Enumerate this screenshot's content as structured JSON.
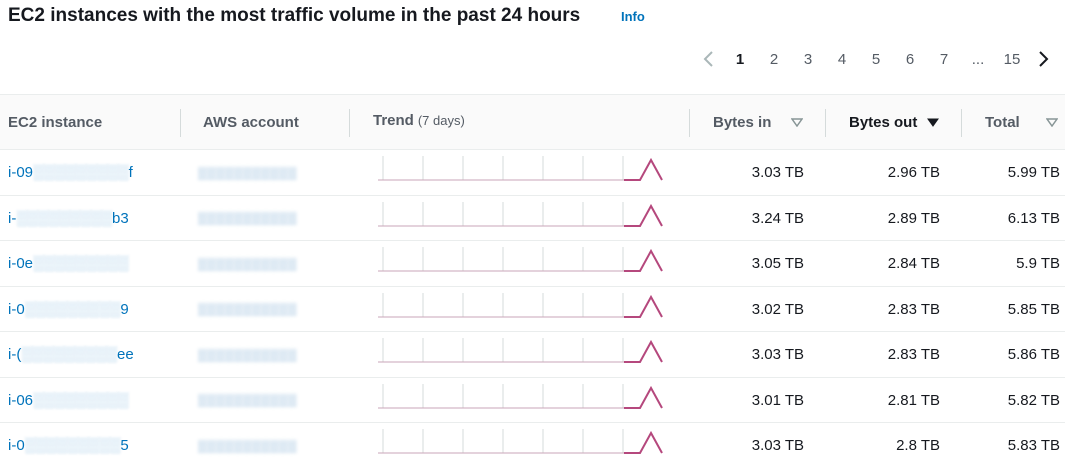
{
  "header": {
    "title": "EC2 instances with the most traffic volume in the past 24 hours",
    "info_label": "Info"
  },
  "pagination": {
    "current": "1",
    "pages": [
      "1",
      "2",
      "3",
      "4",
      "5",
      "6",
      "7"
    ],
    "ellipsis": "...",
    "last": "15"
  },
  "columns": {
    "instance": "EC2 instance",
    "account": "AWS account",
    "trend": "Trend",
    "trend_sub": "(7 days)",
    "bytes_in": "Bytes in",
    "bytes_out": "Bytes out",
    "total": "Total"
  },
  "colors": {
    "link": "#0073bb",
    "sparkline": "#b5487d",
    "header_bg": "#fafafa"
  },
  "rows": [
    {
      "instance_prefix": "i-09",
      "instance_suffix": "f",
      "bytes_in": "3.03 TB",
      "bytes_out": "2.96 TB",
      "total": "5.99 TB"
    },
    {
      "instance_prefix": "i-",
      "instance_suffix": "b3",
      "bytes_in": "3.24 TB",
      "bytes_out": "2.89 TB",
      "total": "6.13 TB"
    },
    {
      "instance_prefix": "i-0e",
      "instance_suffix": "",
      "bytes_in": "3.05 TB",
      "bytes_out": "2.84 TB",
      "total": "5.9 TB"
    },
    {
      "instance_prefix": "i-0",
      "instance_suffix": "9",
      "bytes_in": "3.02 TB",
      "bytes_out": "2.83 TB",
      "total": "5.85 TB"
    },
    {
      "instance_prefix": "i-(",
      "instance_suffix": "ee",
      "bytes_in": "3.03 TB",
      "bytes_out": "2.83 TB",
      "total": "5.86 TB"
    },
    {
      "instance_prefix": "i-06",
      "instance_suffix": "",
      "bytes_in": "3.01 TB",
      "bytes_out": "2.81 TB",
      "total": "5.82 TB"
    },
    {
      "instance_prefix": "i-0",
      "instance_suffix": "5",
      "bytes_in": "3.03 TB",
      "bytes_out": "2.8 TB",
      "total": "5.83 TB"
    }
  ]
}
